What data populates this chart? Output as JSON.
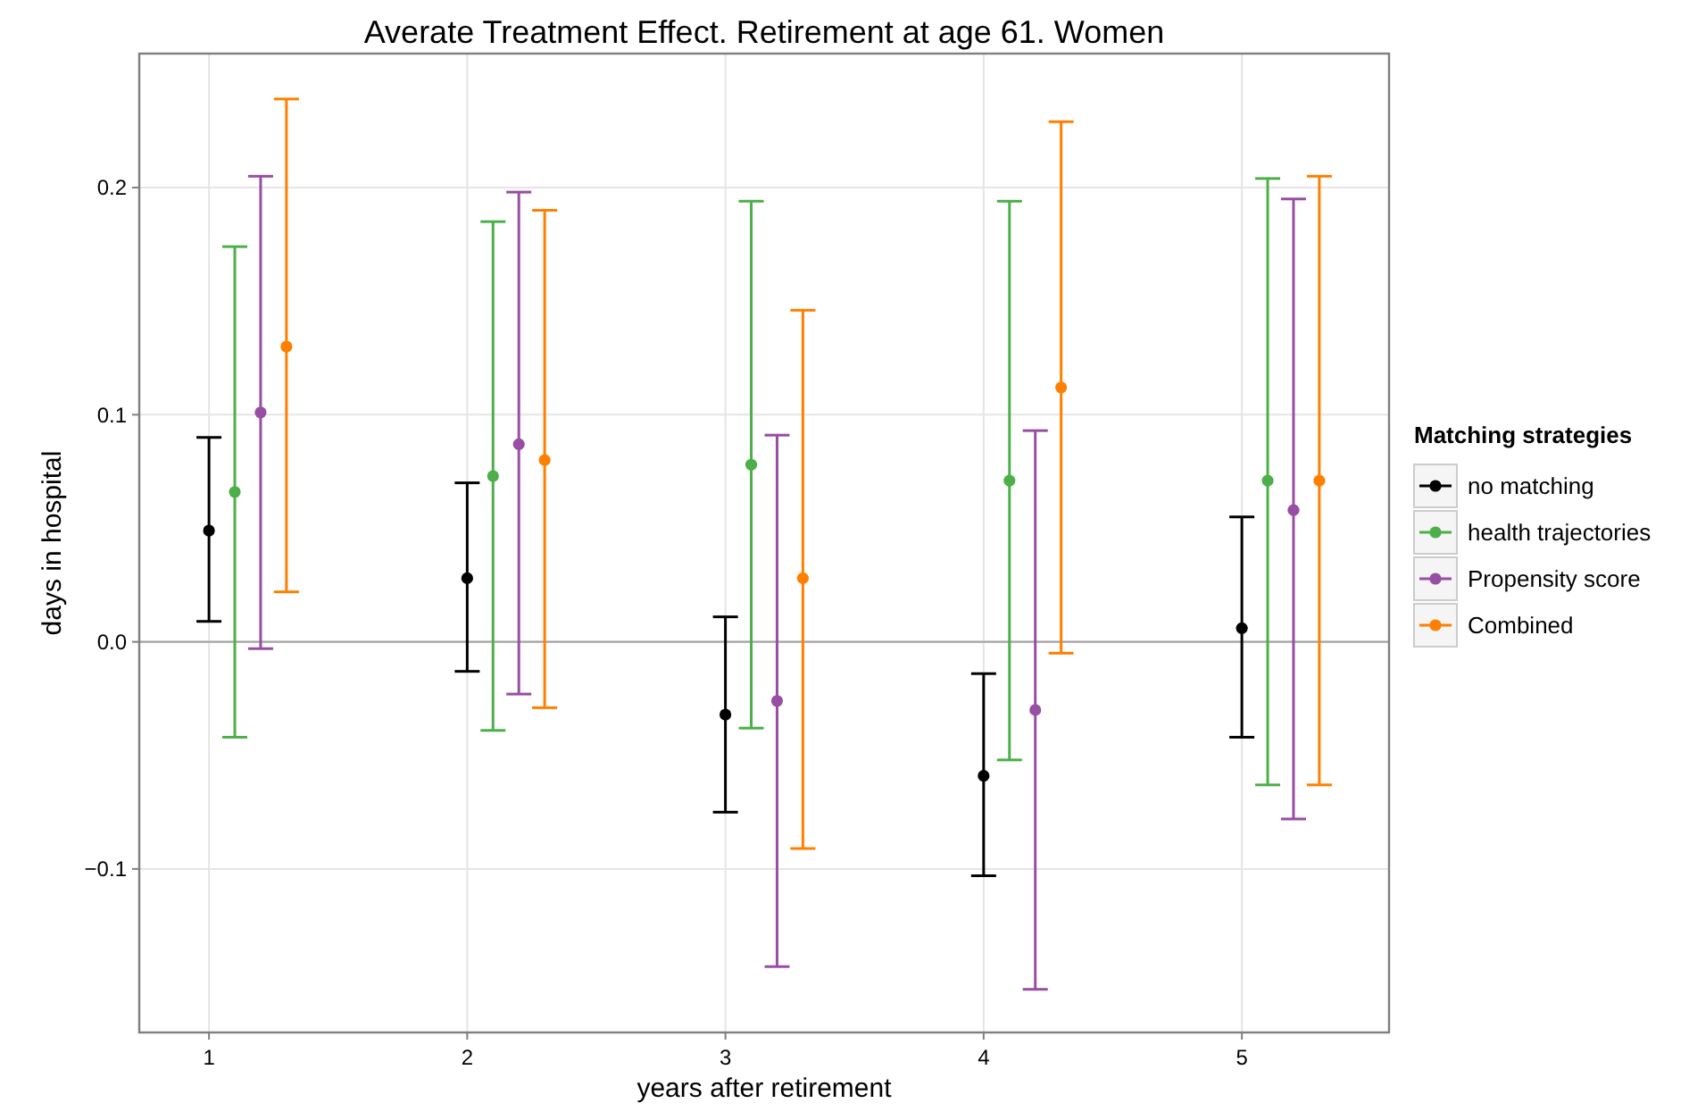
{
  "chart_data": {
    "type": "scatter",
    "title": "Averate Treatment Effect. Retirement at age 61. Women",
    "xlabel": "years after retirement",
    "ylabel": "days in hospital",
    "legend_title": "Matching strategies",
    "legend": "right",
    "grid": true,
    "marker": "circle",
    "xlim": [
      0.73,
      5.57
    ],
    "xticks": [
      1,
      2,
      3,
      4,
      5
    ],
    "ylim": [
      -0.172,
      0.259
    ],
    "yticks": [
      {
        "value": -0.1,
        "label": "−0.1"
      },
      {
        "value": 0,
        "label": "0.0"
      },
      {
        "value": 0.1,
        "label": "0.1"
      },
      {
        "value": 0.2,
        "label": "0.2"
      }
    ],
    "ref_lines": [
      {
        "axis": "y",
        "value": 0,
        "color": "#a6a6a6"
      }
    ],
    "series": [
      {
        "name": "no matching",
        "color": "#000000",
        "x": [
          1,
          2,
          3,
          4,
          5
        ],
        "values": [
          0.049,
          0.028,
          -0.032,
          -0.059,
          0.006
        ],
        "errors": [
          [
            0.009,
            0.09
          ],
          [
            -0.013,
            0.07
          ],
          [
            -0.075,
            0.011
          ],
          [
            -0.103,
            -0.014
          ],
          [
            -0.042,
            0.055
          ]
        ]
      },
      {
        "name": "health trajectories",
        "color": "#4daf4a",
        "x": [
          1.1,
          2.1,
          3.1,
          4.1,
          5.1
        ],
        "values": [
          0.066,
          0.073,
          0.078,
          0.071,
          0.071
        ],
        "errors": [
          [
            -0.042,
            0.174
          ],
          [
            -0.039,
            0.185
          ],
          [
            -0.038,
            0.194
          ],
          [
            -0.052,
            0.194
          ],
          [
            -0.063,
            0.204
          ]
        ]
      },
      {
        "name": "Propensity score",
        "color": "#984ea3",
        "x": [
          1.2,
          2.2,
          3.2,
          4.2,
          5.2
        ],
        "values": [
          0.101,
          0.087,
          -0.026,
          -0.03,
          0.058
        ],
        "errors": [
          [
            -0.003,
            0.205
          ],
          [
            -0.023,
            0.198
          ],
          [
            -0.143,
            0.091
          ],
          [
            -0.153,
            0.093
          ],
          [
            -0.078,
            0.195
          ]
        ]
      },
      {
        "name": "Combined",
        "color": "#ff7f00",
        "x": [
          1.3,
          2.3,
          3.3,
          4.3,
          5.3
        ],
        "values": [
          0.13,
          0.08,
          0.028,
          0.112,
          0.071
        ],
        "errors": [
          [
            0.022,
            0.239
          ],
          [
            -0.029,
            0.19
          ],
          [
            -0.091,
            0.146
          ],
          [
            -0.005,
            0.229
          ],
          [
            -0.063,
            0.205
          ]
        ]
      }
    ]
  }
}
